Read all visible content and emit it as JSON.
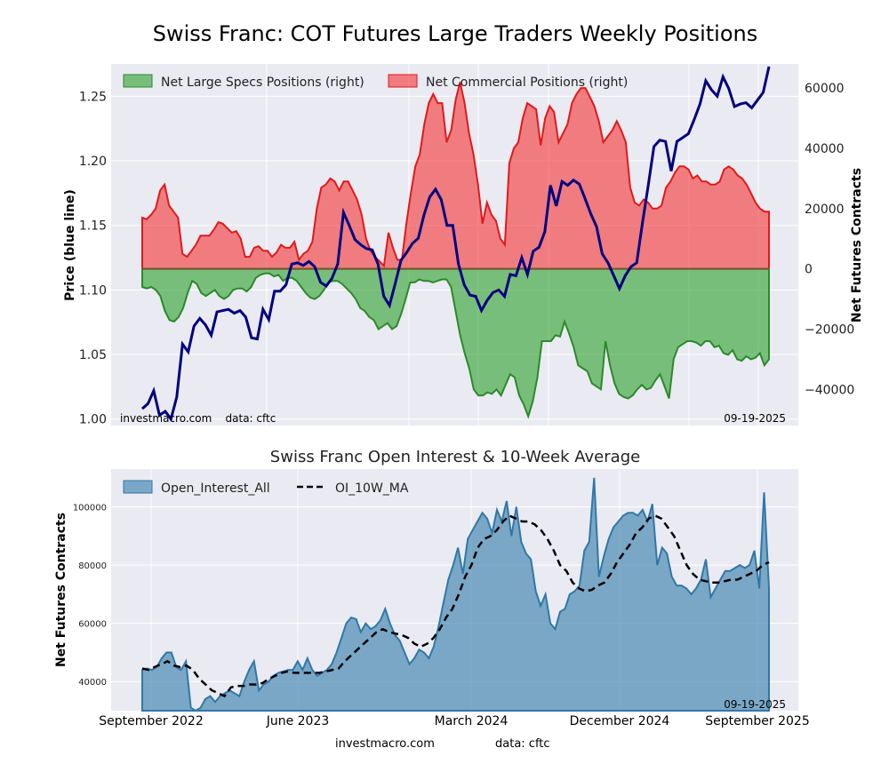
{
  "chart_data": [
    {
      "type": "area",
      "title": "Swiss Franc: COT Futures Large Traders Weekly Positions",
      "ylabel_left": "Price (blue line)",
      "ylabel_right": "Net Futures Contracts",
      "ylim_left": [
        0.995,
        1.275
      ],
      "ylim_right": [
        -52000,
        68000
      ],
      "left_ticks": [
        "1.00",
        "1.05",
        "1.10",
        "1.15",
        "1.20",
        "1.25"
      ],
      "right_ticks": [
        "−40000",
        "−20000",
        "0",
        "20000",
        "40000",
        "60000"
      ],
      "grid": true,
      "legend_placement": "top",
      "watermark": "investmacro.com    data: cftc",
      "date_label": "09-19-2025",
      "colors": {
        "specs": "#2ca02c",
        "commercial": "#f24040",
        "price": "#000080",
        "background": "#eaeaf2"
      },
      "series": [
        {
          "name": "Net Large Specs Positions (right)",
          "values": [
            -6000,
            -6500,
            -6000,
            -7000,
            -9000,
            -14000,
            -17000,
            -17500,
            -16000,
            -13000,
            -8000,
            -4000,
            -5000,
            -8000,
            -9000,
            -8000,
            -7000,
            -9000,
            -10000,
            -9000,
            -7000,
            -6500,
            -6500,
            -7500,
            -6000,
            -3000,
            -2000,
            -1500,
            -1500,
            -2500,
            -2000,
            -4000,
            -3000,
            -3000,
            -4000,
            -6000,
            -8000,
            -9500,
            -10000,
            -9000,
            -7000,
            -4500,
            -4000,
            -4000,
            -5000,
            -6500,
            -8000,
            -10000,
            -13000,
            -14000,
            -16000,
            -17000,
            -20000,
            -19000,
            -18000,
            -20000,
            -19000,
            -15000,
            -10000,
            -4500,
            -4500,
            -3500,
            -4000,
            -4000,
            -4500,
            -4000,
            -3500,
            -3500,
            -6000,
            -14000,
            -22000,
            -28000,
            -33000,
            -40000,
            -42000,
            -42000,
            -41000,
            -41500,
            -40000,
            -42000,
            -38500,
            -35000,
            -36000,
            -42000,
            -45000,
            -49000,
            -44000,
            -36000,
            -24000,
            -24000,
            -24000,
            -22000,
            -22500,
            -17500,
            -21500,
            -26000,
            -32000,
            -33000,
            -34000,
            -38000,
            -39000,
            -40000,
            -24000,
            -32000,
            -38000,
            -41500,
            -42500,
            -43000,
            -42000,
            -40000,
            -38500,
            -40000,
            -39500,
            -37000,
            -35000,
            -39000,
            -43000,
            -30000,
            -26000,
            -25000,
            -24000,
            -24000,
            -24500,
            -25500,
            -24000,
            -24000,
            -26000,
            -25500,
            -28000,
            -28500,
            -27000,
            -30000,
            -30500,
            -29000,
            -30000,
            -29500,
            -28000,
            -32000,
            -30000
          ]
        },
        {
          "name": "Net Commercial Positions (right)",
          "values": [
            17000,
            16500,
            18000,
            20000,
            26000,
            28000,
            21000,
            19000,
            17000,
            5000,
            4000,
            6000,
            8000,
            11000,
            11000,
            11000,
            13000,
            15500,
            15000,
            13500,
            12000,
            12500,
            10000,
            4000,
            4000,
            7000,
            7500,
            6000,
            6000,
            4000,
            5500,
            8000,
            7000,
            7000,
            9000,
            3000,
            5000,
            6000,
            9000,
            20000,
            27000,
            28000,
            30000,
            29000,
            26000,
            29000,
            29000,
            26000,
            23000,
            18000,
            10000,
            6000,
            4000,
            2500,
            1000,
            12000,
            7000,
            3000,
            3000,
            15000,
            25000,
            34000,
            38000,
            48000,
            55000,
            58000,
            55000,
            55000,
            42000,
            46000,
            56000,
            62000,
            55000,
            45000,
            38000,
            28000,
            15000,
            22000,
            18000,
            16000,
            10000,
            8000,
            35000,
            40000,
            42000,
            50000,
            55000,
            54000,
            53000,
            41000,
            50000,
            54000,
            52000,
            42000,
            45000,
            48000,
            55000,
            58000,
            60000,
            60000,
            57000,
            54000,
            49000,
            42000,
            44000,
            46000,
            49000,
            46000,
            42000,
            27000,
            22000,
            21000,
            23000,
            22000,
            20000,
            20000,
            21000,
            27000,
            29000,
            32000,
            34000,
            34000,
            33000,
            30000,
            31000,
            29000,
            29000,
            28000,
            28000,
            29000,
            33000,
            34000,
            33000,
            31000,
            30000,
            28000,
            25000,
            22000,
            20000,
            19000,
            19000
          ]
        },
        {
          "name": "Price (blue line)",
          "values": [
            1.008,
            1.012,
            1.022,
            1.003,
            1.006,
            1.0,
            1.017,
            1.058,
            1.052,
            1.072,
            1.078,
            1.073,
            1.065,
            1.083,
            1.084,
            1.085,
            1.082,
            1.084,
            1.079,
            1.063,
            1.062,
            1.085,
            1.077,
            1.099,
            1.099,
            1.104,
            1.12,
            1.121,
            1.119,
            1.122,
            1.118,
            1.106,
            1.103,
            1.109,
            1.12,
            1.16,
            1.15,
            1.139,
            1.135,
            1.132,
            1.131,
            1.12,
            1.095,
            1.088,
            1.105,
            1.123,
            1.129,
            1.136,
            1.14,
            1.158,
            1.172,
            1.178,
            1.17,
            1.15,
            1.15,
            1.12,
            1.104,
            1.096,
            1.095,
            1.084,
            1.092,
            1.098,
            1.1,
            1.095,
            1.112,
            1.111,
            1.125,
            1.112,
            1.13,
            1.133,
            1.145,
            1.181,
            1.165,
            1.184,
            1.181,
            1.185,
            1.182,
            1.171,
            1.159,
            1.149,
            1.128,
            1.121,
            1.111,
            1.101,
            1.111,
            1.118,
            1.121,
            1.152,
            1.181,
            1.211,
            1.216,
            1.215,
            1.192,
            1.215,
            1.218,
            1.221,
            1.232,
            1.244,
            1.262,
            1.255,
            1.25,
            1.265,
            1.256,
            1.242,
            1.244,
            1.245,
            1.241,
            1.247,
            1.253,
            1.273
          ]
        }
      ]
    },
    {
      "type": "area",
      "title": "Swiss Franc Open Interest & 10-Week Average",
      "ylabel": "Net Futures Contracts",
      "ylim": [
        30000,
        113000
      ],
      "y_ticks": [
        "40000",
        "60000",
        "80000",
        "100000"
      ],
      "x_ticks": [
        "September 2022",
        "June 2023",
        "March 2024",
        "December 2024",
        "September 2025"
      ],
      "grid": true,
      "legend_placement": "top-left",
      "date_label": "09-19-2025",
      "colors": {
        "oi": "#4a8ab4",
        "ma": "#000000",
        "background": "#eaeaf2"
      },
      "series": [
        {
          "name": "Open_Interest_All",
          "values": [
            44000,
            44500,
            44000,
            45000,
            48000,
            50000,
            50000,
            45000,
            44000,
            47000,
            31000,
            29000,
            31000,
            34000,
            35000,
            33000,
            35000,
            36000,
            37000,
            36000,
            35000,
            40000,
            44000,
            47000,
            37000,
            39000,
            40000,
            42000,
            43000,
            43500,
            44000,
            44000,
            47000,
            44000,
            48000,
            44000,
            42000,
            43000,
            44000,
            46000,
            50000,
            55000,
            60000,
            62000,
            61500,
            57000,
            60000,
            58000,
            59000,
            61000,
            65000,
            60000,
            56000,
            54000,
            50000,
            46000,
            48000,
            51000,
            50000,
            48000,
            52000,
            59000,
            67000,
            75000,
            80000,
            86000,
            77000,
            89000,
            92000,
            95000,
            98000,
            96000,
            91000,
            99000,
            95000,
            102000,
            90000,
            100000,
            88000,
            84000,
            82000,
            71000,
            66000,
            70000,
            60000,
            58000,
            64000,
            65000,
            70000,
            71000,
            73000,
            85000,
            88000,
            110000,
            76000,
            83000,
            89000,
            93000,
            95000,
            97000,
            98000,
            98000,
            97000,
            99000,
            95000,
            101000,
            80000,
            86000,
            84000,
            76000,
            73000,
            73000,
            72000,
            70000,
            72000,
            75000,
            82000,
            69000,
            72000,
            75000,
            78000,
            78000,
            79000,
            80000,
            79000,
            80000,
            85000,
            72000,
            105000,
            72000
          ],
          "note": "area series"
        },
        {
          "name": "OI_10W_MA",
          "values": [
            44500,
            44000,
            45000,
            46000,
            47000,
            45500,
            45000,
            45500,
            44000,
            41000,
            39000,
            37000,
            36000,
            35000,
            38000,
            38500,
            38500,
            39000,
            39000,
            39500,
            41000,
            42000,
            43000,
            43500,
            43000,
            43000,
            43000,
            43000,
            43000,
            43500,
            44000,
            44500,
            47000,
            49000,
            51000,
            53000,
            55000,
            57000,
            58000,
            57000,
            56500,
            56000,
            55000,
            53000,
            52000,
            53000,
            55000,
            58000,
            62000,
            65000,
            70000,
            76000,
            80000,
            86000,
            89000,
            90000,
            92000,
            95000,
            97000,
            96000,
            95000,
            95000,
            94000,
            92000,
            89000,
            85000,
            80000,
            78000,
            74000,
            72000,
            71000,
            71500,
            73000,
            74000,
            77000,
            81000,
            84000,
            87000,
            91000,
            93000,
            96000,
            97000,
            96000,
            93000,
            90000,
            85000,
            80000,
            77000,
            75000,
            74500,
            74000,
            74000,
            74500,
            75000,
            75000,
            76000,
            77000,
            78000,
            80000,
            81000
          ]
        }
      ]
    }
  ],
  "footer": {
    "site": "investmacro.com",
    "source": "data: cftc"
  }
}
